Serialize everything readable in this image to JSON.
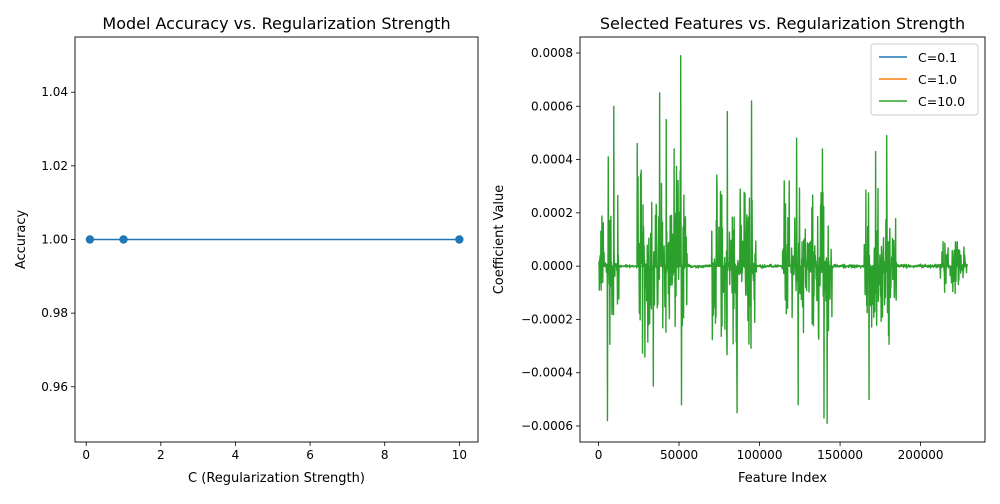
{
  "chart_data": [
    {
      "type": "line",
      "title": "Model Accuracy vs. Regularization Strength",
      "xlabel": "C (Regularization Strength)",
      "ylabel": "Accuracy",
      "xlim": [
        -0.3,
        10.5
      ],
      "ylim": [
        0.945,
        1.055
      ],
      "xticks": [
        0,
        2,
        4,
        6,
        8,
        10
      ],
      "xtick_labels": [
        "0",
        "2",
        "4",
        "6",
        "8",
        "10"
      ],
      "yticks": [
        0.96,
        0.98,
        1.0,
        1.02,
        1.04
      ],
      "ytick_labels": [
        "0.96",
        "0.98",
        "1.00",
        "1.02",
        "1.04"
      ],
      "grid": false,
      "series": [
        {
          "x": [
            0.1,
            1.0,
            10.0
          ],
          "values": [
            1.0,
            1.0,
            1.0
          ],
          "color": "#1f77b4",
          "marker": "circle"
        }
      ]
    },
    {
      "type": "line",
      "title": "Selected Features vs. Regularization Strength",
      "xlabel": "Feature Index",
      "ylabel": "Coefficient Value",
      "xlim": [
        -11500,
        240000
      ],
      "ylim": [
        -0.00066,
        0.00086
      ],
      "xticks": [
        0,
        50000,
        100000,
        150000,
        200000
      ],
      "xtick_labels": [
        "0",
        "50000",
        "100000",
        "150000",
        "200000"
      ],
      "yticks": [
        -0.0006,
        -0.0004,
        -0.0002,
        0.0,
        0.0002,
        0.0004,
        0.0006,
        0.0008
      ],
      "ytick_labels": [
        "−0.0006",
        "−0.0004",
        "−0.0002",
        "0.0000",
        "0.0002",
        "0.0004",
        "0.0006",
        "0.0008"
      ],
      "grid": false,
      "legend_position": "top-right",
      "x_max_feature_index": 229000,
      "series": [
        {
          "name": "C=0.1",
          "color": "#1f77b4"
        },
        {
          "name": "C=1.0",
          "color": "#ff7f0e"
        },
        {
          "name": "C=10.0",
          "color": "#2ca02c",
          "active_regions": [
            [
              0,
              13000,
              0.00032
            ],
            [
              24000,
              55000,
              0.0004
            ],
            [
              70000,
              98000,
              0.00035
            ],
            [
              114000,
              145000,
              0.00033
            ],
            [
              165000,
              185000,
              0.00032
            ],
            [
              212000,
              229000,
              0.00012
            ]
          ],
          "peaks": [
            [
              5500,
              -0.00058
            ],
            [
              6000,
              0.00041
            ],
            [
              9500,
              0.0006
            ],
            [
              24000,
              0.00046
            ],
            [
              34000,
              -0.00045
            ],
            [
              38000,
              0.00065
            ],
            [
              42000,
              0.00055
            ],
            [
              47000,
              0.00044
            ],
            [
              51000,
              0.00079
            ],
            [
              51500,
              -0.00052
            ],
            [
              80000,
              0.00058
            ],
            [
              86000,
              -0.00055
            ],
            [
              95000,
              0.00062
            ],
            [
              123000,
              0.00048
            ],
            [
              124000,
              -0.00052
            ],
            [
              139000,
              0.00044
            ],
            [
              140000,
              -0.00057
            ],
            [
              142000,
              -0.00059
            ],
            [
              168000,
              -0.0005
            ],
            [
              172000,
              0.00043
            ],
            [
              179000,
              0.00049
            ]
          ]
        }
      ]
    }
  ]
}
